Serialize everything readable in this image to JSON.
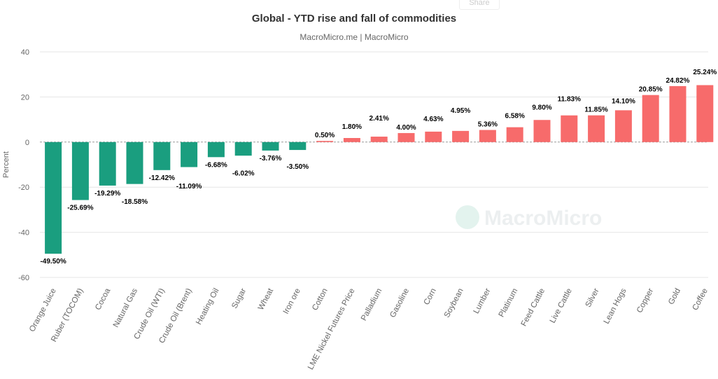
{
  "share_label": "Share",
  "chart_data": {
    "type": "bar",
    "title": "Global - YTD rise and fall of commodities",
    "subtitle": "MacroMicro.me | MacroMicro",
    "watermark": "MacroMicro",
    "ylabel": "Percent",
    "ylim": [
      -60,
      40
    ],
    "yticks": [
      40,
      20,
      0,
      -20,
      -40,
      -60
    ],
    "grid": true,
    "colors": {
      "negative": "#1a9e7f",
      "positive": "#f76b6b"
    },
    "categories": [
      "Orange Juice",
      "Ruber (TOCOM)",
      "Cocoa",
      "Natural Gas",
      "Crude Oil (WTI)",
      "Crude Oil (Brent)",
      "Heating Oil",
      "Sugar",
      "Wheat",
      "Iron ore",
      "Cotton",
      "LME Nickel Futures Price",
      "Palladium",
      "Gasoline",
      "Corn",
      "Soybean",
      "Lumber",
      "Platinum",
      "Feed Cattle",
      "Live Cattle",
      "Silver",
      "Lean Hogs",
      "Copper",
      "Gold",
      "Coffee"
    ],
    "values": [
      -49.5,
      -25.69,
      -19.29,
      -18.58,
      -12.42,
      -11.09,
      -6.68,
      -6.02,
      -3.76,
      -3.5,
      0.5,
      1.8,
      2.41,
      4.0,
      4.63,
      4.95,
      5.36,
      6.58,
      9.8,
      11.83,
      11.85,
      14.1,
      20.85,
      24.82,
      25.24
    ],
    "data_labels": [
      "-49.50%",
      "-25.69%",
      "-19.29%",
      "-18.58%",
      "-12.42%",
      "-11.09%",
      "-6.68%",
      "-6.02%",
      "-3.76%",
      "-3.50%",
      "0.50%",
      "1.80%",
      "2.41%",
      "4.00%",
      "4.63%",
      "4.95%",
      "5.36%",
      "6.58%",
      "9.80%",
      "11.83%",
      "11.85%",
      "14.10%",
      "20.85%",
      "24.82%",
      "25.24%"
    ]
  }
}
